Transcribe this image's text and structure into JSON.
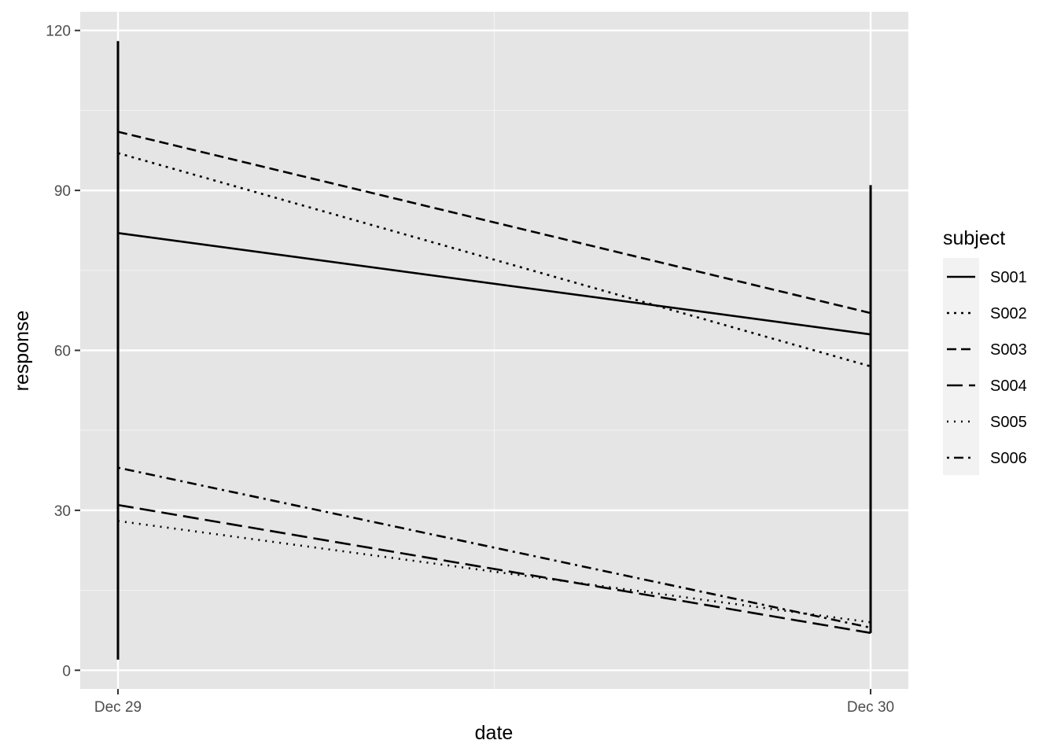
{
  "chart_data": {
    "type": "line",
    "xlabel": "date",
    "ylabel": "response",
    "x_categories": [
      "Dec 29",
      "Dec 30"
    ],
    "ylim": [
      -3.5,
      123.5
    ],
    "y_ticks": [
      0,
      30,
      60,
      90,
      120
    ],
    "grid": true,
    "legend": {
      "title": "subject",
      "position": "right"
    },
    "series": [
      {
        "name": "S001",
        "linetype": "solid",
        "x": [
          "Dec 29",
          "Dec 30"
        ],
        "values": [
          82,
          63
        ]
      },
      {
        "name": "S002",
        "linetype": "dotted",
        "x": [
          "Dec 29",
          "Dec 30"
        ],
        "values": [
          97,
          57
        ]
      },
      {
        "name": "S003",
        "linetype": "dashed",
        "x": [
          "Dec 29",
          "Dec 30"
        ],
        "values": [
          101,
          67
        ]
      },
      {
        "name": "S004",
        "linetype": "longdash",
        "x": [
          "Dec 29",
          "Dec 30"
        ],
        "values": [
          31,
          7
        ]
      },
      {
        "name": "S005",
        "linetype": "dotted-fine",
        "x": [
          "Dec 29",
          "Dec 30"
        ],
        "values": [
          28,
          9
        ]
      },
      {
        "name": "S006",
        "linetype": "dotdash",
        "x": [
          "Dec 29",
          "Dec 30"
        ],
        "values": [
          38,
          8
        ]
      }
    ],
    "vertical_segments": [
      {
        "x": "Dec 29",
        "range": [
          2,
          118
        ]
      },
      {
        "x": "Dec 30",
        "range": [
          7,
          91
        ]
      }
    ],
    "colors": {
      "panel": "#e5e5e5",
      "grid": "#ffffff",
      "line": "#000000",
      "tick_text": "#4d4d4d"
    }
  }
}
